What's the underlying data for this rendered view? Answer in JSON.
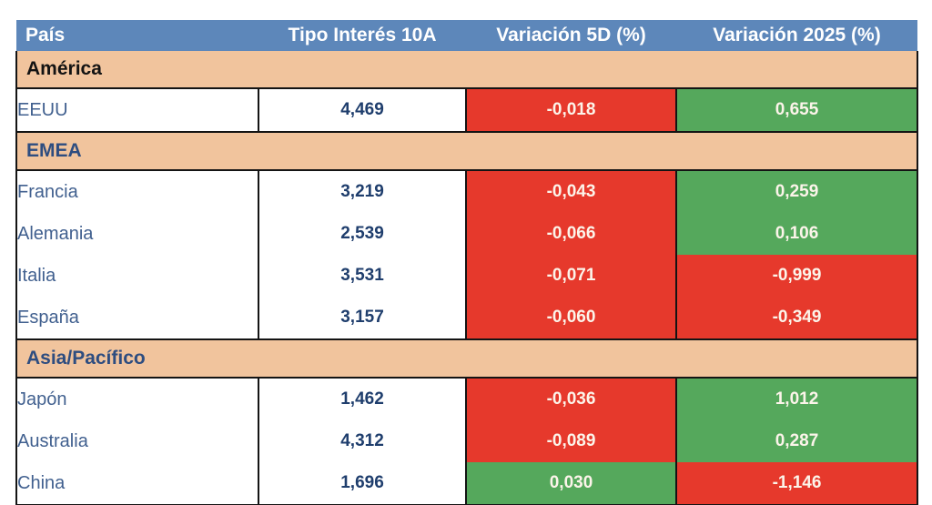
{
  "chart_data": {
    "type": "table",
    "columns": [
      "País",
      "Tipo Interés 10A",
      "Variación 5D (%)",
      "Variación 2025 (%)"
    ],
    "groups": [
      {
        "region": "América",
        "region_text_color": "#131313",
        "rows": [
          {
            "country": "EEUU",
            "rate": "4,469",
            "var_5d": "-0,018",
            "var_2025": "0,655"
          }
        ]
      },
      {
        "region": "EMEA",
        "region_text_color": "#2e4d80",
        "rows": [
          {
            "country": "Francia",
            "rate": "3,219",
            "var_5d": "-0,043",
            "var_2025": "0,259"
          },
          {
            "country": "Alemania",
            "rate": "2,539",
            "var_5d": "-0,066",
            "var_2025": "0,106"
          },
          {
            "country": "Italia",
            "rate": "3,531",
            "var_5d": "-0,071",
            "var_2025": "-0,999"
          },
          {
            "country": "España",
            "rate": "3,157",
            "var_5d": "-0,060",
            "var_2025": "-0,349"
          }
        ]
      },
      {
        "region": "Asia/Pacífico",
        "region_text_color": "#2e4d80",
        "rows": [
          {
            "country": "Japón",
            "rate": "1,462",
            "var_5d": "-0,036",
            "var_2025": "1,012"
          },
          {
            "country": "Australia",
            "rate": "4,312",
            "var_5d": "-0,089",
            "var_2025": "0,287"
          },
          {
            "country": "China",
            "rate": "1,696",
            "var_5d": "0,030",
            "var_2025": "-1,146"
          }
        ]
      }
    ]
  },
  "colors": {
    "header_bg": "#5d87ba",
    "header_text": "#ffffff",
    "region_bg": "#f1c49d",
    "negative_bg": "#e6392c",
    "positive_bg": "#55a85c",
    "variation_text": "#fcf4ea",
    "country_text": "#41608f",
    "rate_text": "#1f3e6d",
    "border": "#141414"
  }
}
